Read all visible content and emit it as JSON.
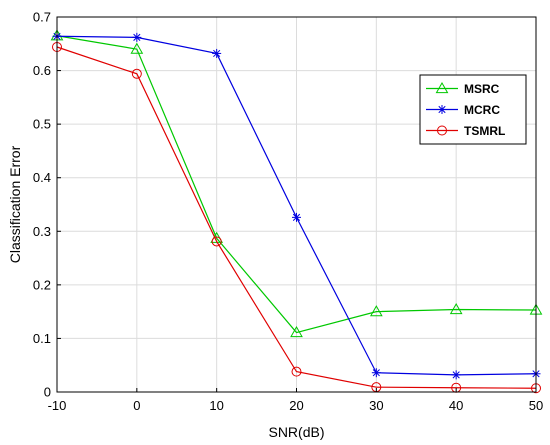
{
  "chart_data": {
    "type": "line",
    "title": "",
    "xlabel": "SNR(dB)",
    "ylabel": "Classification Error",
    "x": [
      -10,
      0,
      10,
      20,
      30,
      40,
      50
    ],
    "xlim": [
      -10,
      50
    ],
    "ylim": [
      0,
      0.7
    ],
    "xticks": [
      "-10",
      "0",
      "10",
      "20",
      "30",
      "40",
      "50"
    ],
    "yticks": [
      "0",
      "0.1",
      "0.2",
      "0.3",
      "0.4",
      "0.5",
      "0.6",
      "0.7"
    ],
    "grid": true,
    "legend_position": "top-right",
    "series": [
      {
        "name": "MSRC",
        "color": "#00c800",
        "marker": "triangle",
        "values": [
          0.665,
          0.64,
          0.287,
          0.111,
          0.15,
          0.154,
          0.153
        ]
      },
      {
        "name": "MCRC",
        "color": "#0000e0",
        "marker": "asterisk",
        "values": [
          0.664,
          0.662,
          0.632,
          0.326,
          0.036,
          0.032,
          0.034
        ]
      },
      {
        "name": "TSMRL",
        "color": "#e00000",
        "marker": "circle",
        "values": [
          0.644,
          0.594,
          0.281,
          0.038,
          0.009,
          0.008,
          0.007
        ]
      }
    ]
  }
}
